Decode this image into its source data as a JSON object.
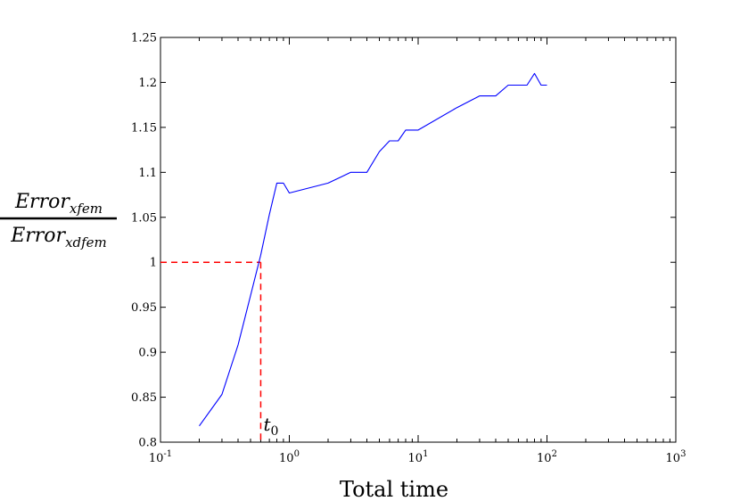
{
  "chart_data": {
    "type": "line",
    "xscale": "log",
    "xlim": [
      0.1,
      1000
    ],
    "ylim": [
      0.8,
      1.25
    ],
    "xlabel": "Total time",
    "ylabel_numerator": "Error",
    "ylabel_numerator_sub": "xfem",
    "ylabel_denominator": "Error",
    "ylabel_denominator_sub": "xdfem",
    "x_ticks": [
      {
        "value": 0.1,
        "base": "10",
        "exp": "-1"
      },
      {
        "value": 1,
        "base": "10",
        "exp": "0"
      },
      {
        "value": 10,
        "base": "10",
        "exp": "1"
      },
      {
        "value": 100,
        "base": "10",
        "exp": "2"
      },
      {
        "value": 1000,
        "base": "10",
        "exp": "3"
      }
    ],
    "y_ticks": [
      "0.8",
      "0.85",
      "0.9",
      "0.95",
      "1",
      "1.05",
      "1.1",
      "1.15",
      "1.2",
      "1.25"
    ],
    "grid": false,
    "series": [
      {
        "color": "#0000ff",
        "x": [
          0.2,
          0.3,
          0.4,
          0.5,
          0.6,
          0.7,
          0.8,
          0.9,
          1,
          2,
          3,
          4,
          5,
          6,
          7,
          8,
          9,
          10,
          20,
          30,
          40,
          50,
          60,
          70,
          80,
          90,
          100
        ],
        "y": [
          0.818,
          0.853,
          0.908,
          0.963,
          1.008,
          1.053,
          1.088,
          1.088,
          1.077,
          1.088,
          1.1,
          1.1,
          1.123,
          1.135,
          1.135,
          1.147,
          1.147,
          1.147,
          1.172,
          1.185,
          1.185,
          1.197,
          1.197,
          1.197,
          1.21,
          1.197,
          1.197
        ]
      }
    ],
    "annotation": {
      "x": 0.6,
      "y": 1.0,
      "color": "#ff0000",
      "style": "dashed",
      "label": "t",
      "label_sub": "0"
    }
  }
}
